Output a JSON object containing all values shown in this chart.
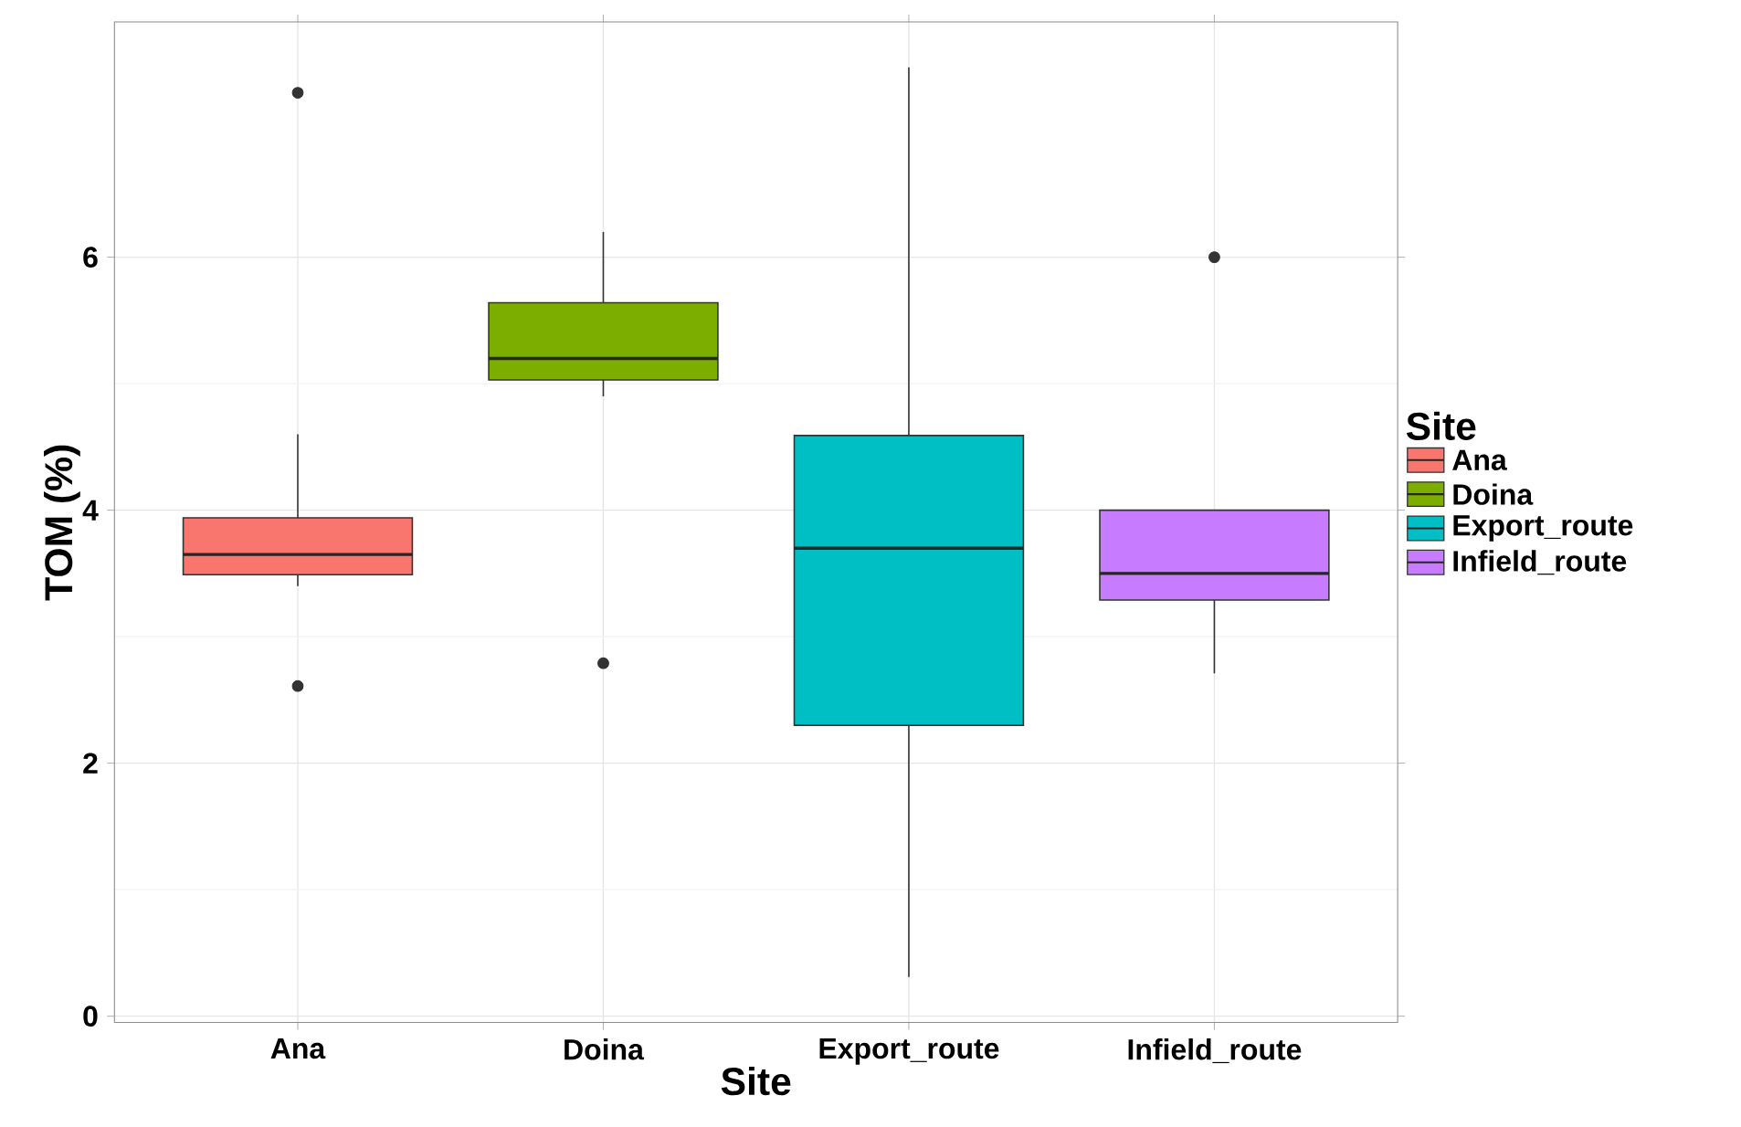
{
  "chart_data": {
    "type": "box",
    "xlabel": "Site",
    "ylabel": "TOM (%)",
    "legend_title": "Site",
    "categories": [
      "Ana",
      "Doina",
      "Export_route",
      "Infield_route"
    ],
    "series": [
      {
        "name": "Ana",
        "color": "#f8766d",
        "boxes": [
          {
            "low": 3.4,
            "q1": 3.49,
            "median": 3.65,
            "q3": 3.94,
            "high": 4.6,
            "outliers": [
              7.3,
              2.61
            ]
          },
          null,
          null,
          null
        ]
      },
      {
        "name": "Doina",
        "color": "#7cae00",
        "boxes": [
          null,
          {
            "low": 4.9,
            "q1": 5.03,
            "median": 5.2,
            "q3": 5.64,
            "high": 6.2,
            "outliers": [
              2.79
            ]
          },
          null,
          null
        ]
      },
      {
        "name": "Export_route",
        "color": "#00bfc4",
        "boxes": [
          null,
          null,
          {
            "low": 0.31,
            "q1": 2.3,
            "median": 3.7,
            "q3": 4.59,
            "high": 7.5
          },
          null
        ]
      },
      {
        "name": "Infield_route",
        "color": "#c77cff",
        "boxes": [
          null,
          null,
          null,
          {
            "low": 2.71,
            "q1": 3.29,
            "median": 3.5,
            "q3": 4.0,
            "high": 4.0,
            "outliers": [
              6.0
            ]
          }
        ]
      }
    ],
    "ylim": [
      -0.05,
      7.86
    ],
    "yticks": [
      0,
      2,
      4,
      6
    ],
    "grid": true,
    "legend": "right"
  }
}
